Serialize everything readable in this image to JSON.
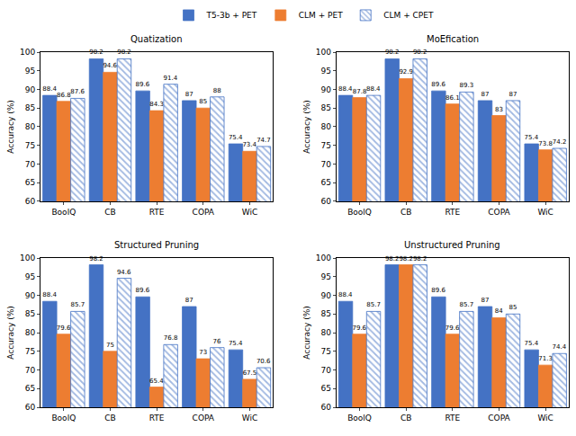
{
  "chart_data": [
    {
      "type": "bar",
      "title": "Quatization",
      "ylabel": "Accuracy (%)",
      "categories": [
        "BoolQ",
        "CB",
        "RTE",
        "COPA",
        "WiC"
      ],
      "series": [
        {
          "name": "T5-3b + PET",
          "color": "#4472c4",
          "values": [
            88.4,
            98.2,
            89.6,
            87,
            75.4
          ]
        },
        {
          "name": "CLM + PET",
          "color": "#ed7d31",
          "values": [
            86.8,
            94.6,
            84.3,
            85,
            73.4
          ]
        },
        {
          "name": "CLM + CPET",
          "color": "#4472c4",
          "marker": "hatch",
          "values": [
            87.6,
            98.2,
            91.4,
            88,
            74.7
          ]
        }
      ],
      "ylim": [
        60,
        100
      ],
      "yticks": [
        60,
        65,
        70,
        75,
        80,
        85,
        90,
        95,
        100
      ],
      "grid": false,
      "data_labels": true,
      "legend": "top"
    },
    {
      "type": "bar",
      "title": "MoEfication",
      "ylabel": "Accuracy (%)",
      "categories": [
        "BoolQ",
        "CB",
        "RTE",
        "COPA",
        "WiC"
      ],
      "series": [
        {
          "name": "T5-3b + PET",
          "color": "#4472c4",
          "values": [
            88.4,
            98.2,
            89.6,
            87,
            75.4
          ]
        },
        {
          "name": "CLM + PET",
          "color": "#ed7d31",
          "values": [
            87.8,
            92.9,
            86.1,
            83,
            73.8
          ]
        },
        {
          "name": "CLM + CPET",
          "color": "#4472c4",
          "marker": "hatch",
          "values": [
            88.4,
            98.2,
            89.3,
            87,
            74.2
          ]
        }
      ],
      "ylim": [
        60,
        100
      ],
      "yticks": [
        60,
        65,
        70,
        75,
        80,
        85,
        90,
        95,
        100
      ],
      "grid": false,
      "data_labels": true,
      "legend": "top"
    },
    {
      "type": "bar",
      "title": "Structured Pruning",
      "ylabel": "Accuracy (%)",
      "categories": [
        "BoolQ",
        "CB",
        "RTE",
        "COPA",
        "WiC"
      ],
      "series": [
        {
          "name": "T5-3b + PET",
          "color": "#4472c4",
          "values": [
            88.4,
            98.2,
            89.6,
            87,
            75.4
          ]
        },
        {
          "name": "CLM + PET",
          "color": "#ed7d31",
          "values": [
            79.6,
            75,
            65.4,
            73,
            67.5
          ]
        },
        {
          "name": "CLM + CPET",
          "color": "#4472c4",
          "marker": "hatch",
          "values": [
            85.7,
            94.6,
            76.8,
            76,
            70.6
          ]
        }
      ],
      "ylim": [
        60,
        100
      ],
      "yticks": [
        60,
        65,
        70,
        75,
        80,
        85,
        90,
        95,
        100
      ],
      "grid": false,
      "data_labels": true,
      "legend": "top"
    },
    {
      "type": "bar",
      "title": "Unstructured Pruning",
      "ylabel": "Accuracy (%)",
      "categories": [
        "BoolQ",
        "CB",
        "RTE",
        "COPA",
        "WiC"
      ],
      "series": [
        {
          "name": "T5-3b + PET",
          "color": "#4472c4",
          "values": [
            88.4,
            98.2,
            89.6,
            87,
            75.4
          ]
        },
        {
          "name": "CLM + PET",
          "color": "#ed7d31",
          "values": [
            79.6,
            98.2,
            79.6,
            84,
            71.3
          ]
        },
        {
          "name": "CLM + CPET",
          "color": "#4472c4",
          "marker": "hatch",
          "values": [
            85.7,
            98.2,
            85.7,
            85,
            74.4
          ]
        }
      ],
      "ylim": [
        60,
        100
      ],
      "yticks": [
        60,
        65,
        70,
        75,
        80,
        85,
        90,
        95,
        100
      ],
      "grid": false,
      "data_labels": true,
      "legend": "top"
    }
  ]
}
